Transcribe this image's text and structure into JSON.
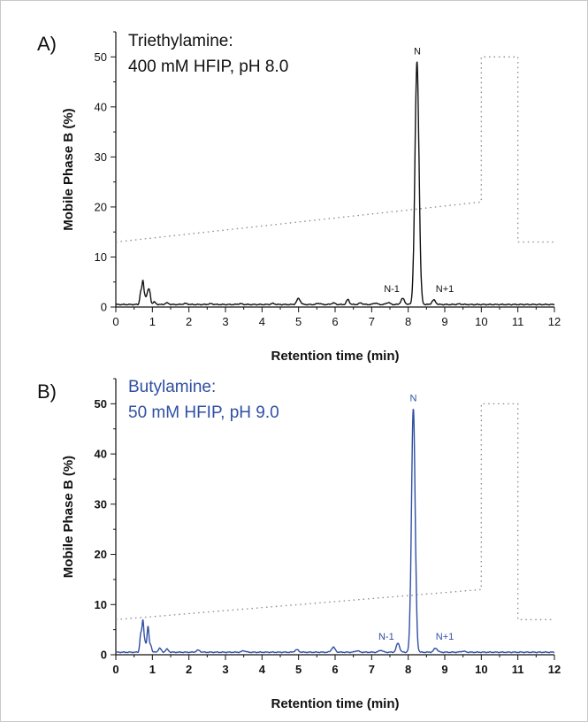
{
  "chart_data": [
    {
      "type": "line",
      "panel_label": "A)",
      "condition_line1": "Triethylamine:",
      "condition_line2": "400 mM HFIP, pH 8.0",
      "xlabel": "Retention time (min)",
      "ylabel": "Mobile Phase B (%)",
      "xlim": [
        0,
        12
      ],
      "ylim": [
        0,
        55
      ],
      "x_ticks": [
        "0",
        "1",
        "2",
        "3",
        "4",
        "5",
        "6",
        "7",
        "8",
        "9",
        "10",
        "11",
        "12"
      ],
      "y_ticks": [
        "0",
        "10",
        "20",
        "30",
        "40",
        "50"
      ],
      "bold_ticks": false,
      "trace_color": "#111111",
      "gradient_color": "#888888",
      "peak_labels": [
        {
          "text": "N-1",
          "x": 7.55,
          "y": 3.0
        },
        {
          "text": "N",
          "x": 8.25,
          "y": 50.5
        },
        {
          "text": "N+1",
          "x": 9.0,
          "y": 3.0
        }
      ],
      "series": [
        {
          "type": "chromatogram",
          "baseline": 0.5,
          "peaks": [
            {
              "x": 0.68,
              "h": 2.5,
              "w": 0.025
            },
            {
              "x": 0.74,
              "h": 4.5,
              "w": 0.025
            },
            {
              "x": 0.8,
              "h": 1.6,
              "w": 0.03
            },
            {
              "x": 0.88,
              "h": 2.6,
              "w": 0.03
            },
            {
              "x": 0.93,
              "h": 2.0,
              "w": 0.025
            },
            {
              "x": 1.05,
              "h": 0.5,
              "w": 0.04
            },
            {
              "x": 1.4,
              "h": 0.3,
              "w": 0.05
            },
            {
              "x": 1.9,
              "h": 0.2,
              "w": 0.06
            },
            {
              "x": 2.6,
              "h": 0.15,
              "w": 0.06
            },
            {
              "x": 3.4,
              "h": 0.15,
              "w": 0.06
            },
            {
              "x": 4.3,
              "h": 0.2,
              "w": 0.05
            },
            {
              "x": 5.0,
              "h": 1.2,
              "w": 0.05
            },
            {
              "x": 5.55,
              "h": 0.25,
              "w": 0.05
            },
            {
              "x": 5.95,
              "h": 0.3,
              "w": 0.05
            },
            {
              "x": 6.35,
              "h": 1.0,
              "w": 0.04
            },
            {
              "x": 6.7,
              "h": 0.3,
              "w": 0.05
            },
            {
              "x": 7.1,
              "h": 0.3,
              "w": 0.05
            },
            {
              "x": 7.45,
              "h": 0.4,
              "w": 0.05
            },
            {
              "x": 7.85,
              "h": 1.2,
              "w": 0.05
            },
            {
              "x": 8.24,
              "h": 48.5,
              "w": 0.055
            },
            {
              "x": 8.7,
              "h": 0.9,
              "w": 0.05
            },
            {
              "x": 9.4,
              "h": 0.1,
              "w": 0.06
            }
          ]
        },
        {
          "type": "gradient",
          "x": [
            0,
            10,
            10,
            11,
            11,
            12
          ],
          "y": [
            13,
            21,
            50,
            50,
            13,
            13
          ]
        }
      ]
    },
    {
      "type": "line",
      "panel_label": "B)",
      "condition_line1": "Butylamine:",
      "condition_line2": "50 mM HFIP, pH 9.0",
      "xlabel": "Retention time (min)",
      "ylabel": "Mobile Phase B (%)",
      "xlim": [
        0,
        12
      ],
      "ylim": [
        0,
        55
      ],
      "x_ticks": [
        "0",
        "1",
        "2",
        "3",
        "4",
        "5",
        "6",
        "7",
        "8",
        "9",
        "10",
        "11",
        "12"
      ],
      "y_ticks": [
        "0",
        "10",
        "20",
        "30",
        "40",
        "50"
      ],
      "bold_ticks": true,
      "trace_color": "#2f4fa3",
      "gradient_color": "#888888",
      "peak_labels": [
        {
          "text": "N-1",
          "x": 7.4,
          "y": 3.0
        },
        {
          "text": "N",
          "x": 8.14,
          "y": 50.5
        },
        {
          "text": "N+1",
          "x": 9.0,
          "y": 3.0
        }
      ],
      "series": [
        {
          "type": "chromatogram",
          "baseline": 0.5,
          "peaks": [
            {
              "x": 0.68,
              "h": 3.5,
              "w": 0.025
            },
            {
              "x": 0.74,
              "h": 6.0,
              "w": 0.025
            },
            {
              "x": 0.8,
              "h": 2.0,
              "w": 0.03
            },
            {
              "x": 0.88,
              "h": 5.0,
              "w": 0.025
            },
            {
              "x": 0.95,
              "h": 1.5,
              "w": 0.03
            },
            {
              "x": 1.2,
              "h": 0.8,
              "w": 0.04
            },
            {
              "x": 1.4,
              "h": 0.6,
              "w": 0.04
            },
            {
              "x": 2.25,
              "h": 0.4,
              "w": 0.05
            },
            {
              "x": 3.5,
              "h": 0.3,
              "w": 0.05
            },
            {
              "x": 4.95,
              "h": 0.5,
              "w": 0.05
            },
            {
              "x": 5.95,
              "h": 1.0,
              "w": 0.05
            },
            {
              "x": 6.6,
              "h": 0.3,
              "w": 0.05
            },
            {
              "x": 7.25,
              "h": 0.4,
              "w": 0.05
            },
            {
              "x": 7.72,
              "h": 1.8,
              "w": 0.045
            },
            {
              "x": 8.14,
              "h": 48.5,
              "w": 0.05
            },
            {
              "x": 8.75,
              "h": 0.8,
              "w": 0.05
            },
            {
              "x": 9.5,
              "h": 0.2,
              "w": 0.06
            }
          ]
        },
        {
          "type": "gradient",
          "x": [
            0,
            10,
            10,
            11,
            11,
            12
          ],
          "y": [
            7,
            13,
            50,
            50,
            7,
            7
          ]
        }
      ]
    }
  ]
}
